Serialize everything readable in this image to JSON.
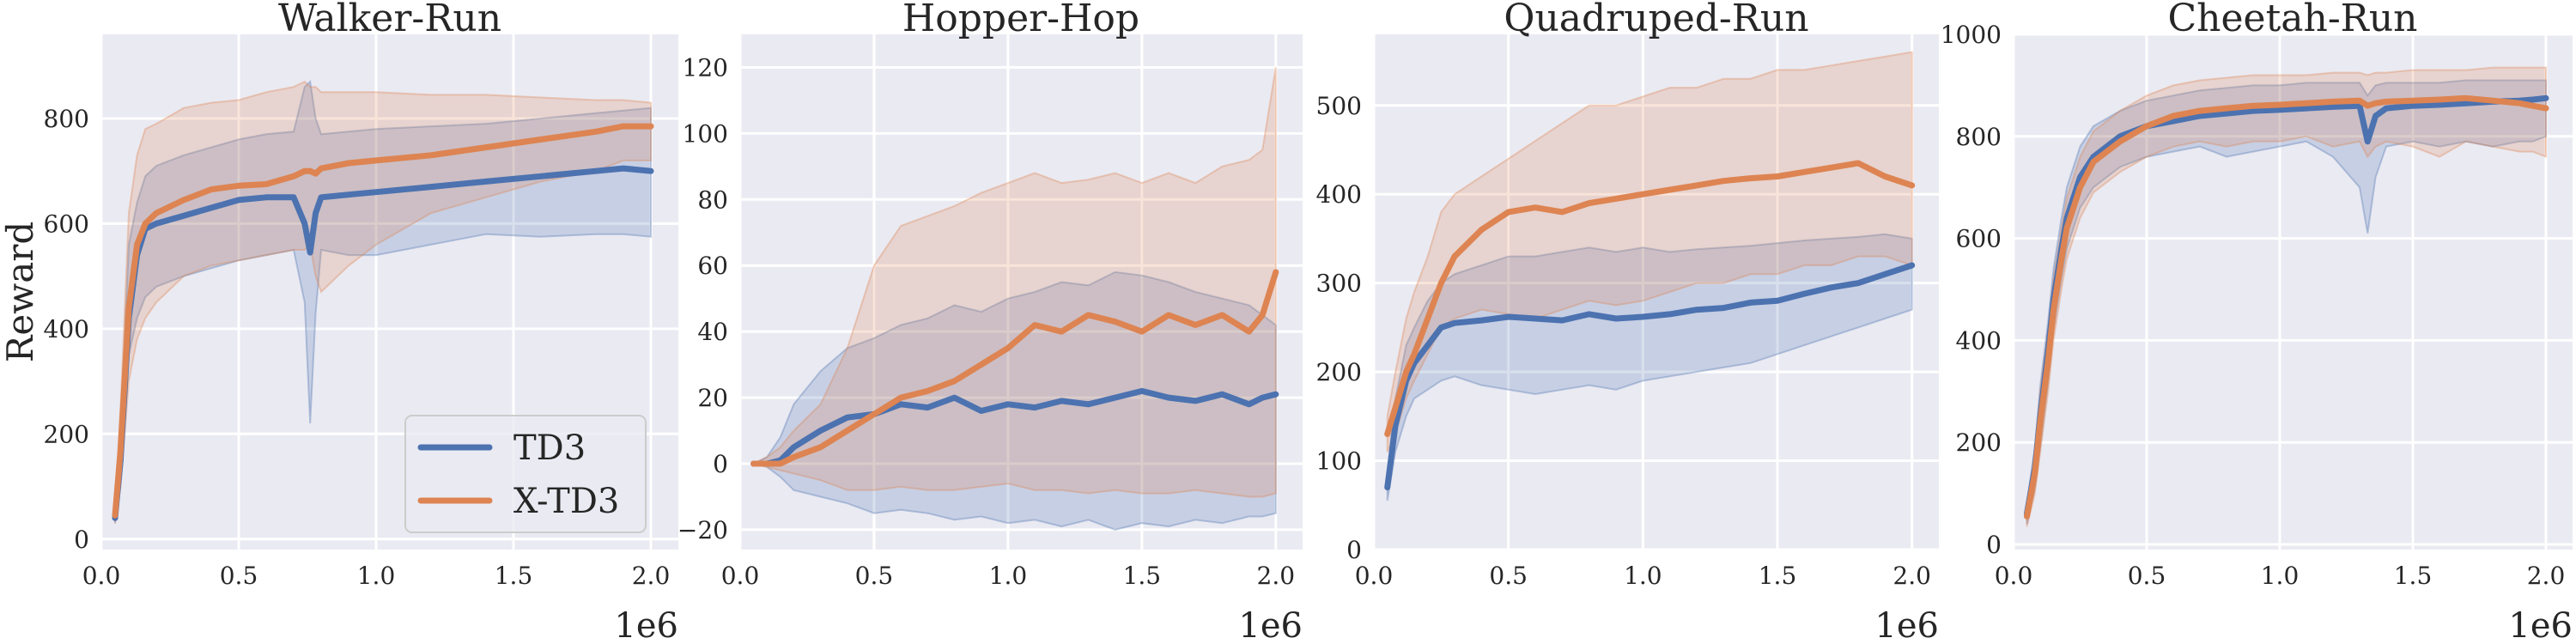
{
  "chart_data": [
    {
      "type": "line",
      "title": "Walker-Run",
      "ylabel": "Reward",
      "x_offset_label": "1e6",
      "xlim": [
        0.0,
        2.1
      ],
      "ylim": [
        -20,
        960
      ],
      "xticks": [
        "0.0",
        "0.5",
        "1.0",
        "1.5",
        "2.0"
      ],
      "yticks": [
        "0",
        "200",
        "400",
        "600",
        "800"
      ],
      "legend": {
        "placement": "lower-right",
        "entries": [
          "TD3",
          "X-TD3"
        ]
      },
      "grid": true,
      "x": [
        0.05,
        0.07,
        0.1,
        0.13,
        0.16,
        0.2,
        0.3,
        0.4,
        0.5,
        0.6,
        0.7,
        0.74,
        0.76,
        0.78,
        0.8,
        0.9,
        1.0,
        1.2,
        1.4,
        1.6,
        1.8,
        1.9,
        2.0
      ],
      "series": [
        {
          "name": "TD3",
          "color": "#4c72b0",
          "values": [
            40,
            150,
            420,
            540,
            590,
            600,
            615,
            630,
            645,
            650,
            650,
            600,
            545,
            620,
            650,
            655,
            660,
            670,
            680,
            690,
            700,
            705,
            700
          ],
          "lower": [
            30,
            110,
            350,
            420,
            460,
            480,
            500,
            515,
            530,
            540,
            550,
            450,
            220,
            430,
            550,
            540,
            540,
            560,
            580,
            575,
            580,
            580,
            575
          ],
          "upper": [
            55,
            210,
            560,
            640,
            690,
            710,
            730,
            745,
            760,
            770,
            775,
            860,
            870,
            800,
            770,
            775,
            780,
            785,
            790,
            800,
            810,
            815,
            820
          ]
        },
        {
          "name": "X-TD3",
          "color": "#dd8452",
          "values": [
            45,
            170,
            440,
            560,
            600,
            620,
            645,
            665,
            672,
            675,
            690,
            700,
            700,
            695,
            705,
            715,
            720,
            730,
            745,
            760,
            775,
            785,
            785
          ],
          "lower": [
            30,
            100,
            300,
            380,
            420,
            450,
            500,
            520,
            530,
            540,
            550,
            550,
            560,
            500,
            470,
            520,
            560,
            620,
            650,
            680,
            700,
            720,
            720
          ],
          "upper": [
            60,
            250,
            620,
            730,
            780,
            790,
            820,
            830,
            835,
            850,
            860,
            870,
            860,
            860,
            850,
            850,
            850,
            845,
            845,
            840,
            835,
            835,
            830
          ]
        }
      ]
    },
    {
      "type": "line",
      "title": "Hopper-Hop",
      "x_offset_label": "1e6",
      "xlim": [
        0.0,
        2.1
      ],
      "ylim": [
        -26,
        130
      ],
      "xticks": [
        "0.0",
        "0.5",
        "1.0",
        "1.5",
        "2.0"
      ],
      "yticks": [
        "−20",
        "0",
        "20",
        "40",
        "60",
        "80",
        "100",
        "120"
      ],
      "grid": true,
      "x": [
        0.05,
        0.1,
        0.15,
        0.2,
        0.3,
        0.4,
        0.5,
        0.6,
        0.7,
        0.8,
        0.9,
        1.0,
        1.1,
        1.2,
        1.3,
        1.4,
        1.5,
        1.6,
        1.7,
        1.8,
        1.9,
        1.95,
        2.0
      ],
      "series": [
        {
          "name": "TD3",
          "color": "#4c72b0",
          "values": [
            0,
            0,
            1,
            5,
            10,
            14,
            15,
            18,
            17,
            20,
            16,
            18,
            17,
            19,
            18,
            20,
            22,
            20,
            19,
            21,
            18,
            20,
            21
          ],
          "lower": [
            0,
            -1,
            -4,
            -8,
            -10,
            -12,
            -15,
            -14,
            -15,
            -17,
            -16,
            -18,
            -17,
            -19,
            -17,
            -20,
            -18,
            -19,
            -17,
            -18,
            -16,
            -16,
            -15
          ],
          "upper": [
            0,
            2,
            8,
            18,
            28,
            35,
            38,
            42,
            44,
            48,
            46,
            50,
            52,
            55,
            54,
            58,
            57,
            55,
            52,
            50,
            48,
            45,
            42
          ]
        },
        {
          "name": "X-TD3",
          "color": "#dd8452",
          "values": [
            0,
            0,
            0,
            2,
            5,
            10,
            15,
            20,
            22,
            25,
            30,
            35,
            42,
            40,
            45,
            43,
            40,
            45,
            42,
            45,
            40,
            45,
            58
          ],
          "lower": [
            0,
            -1,
            -2,
            -3,
            -5,
            -8,
            -8,
            -7,
            -8,
            -8,
            -7,
            -6,
            -8,
            -8,
            -9,
            -8,
            -9,
            -9,
            -8,
            -9,
            -10,
            -10,
            -9
          ],
          "upper": [
            0,
            2,
            5,
            10,
            18,
            35,
            60,
            72,
            75,
            78,
            82,
            85,
            88,
            85,
            86,
            88,
            85,
            88,
            85,
            90,
            92,
            95,
            120
          ]
        }
      ]
    },
    {
      "type": "line",
      "title": "Quadruped-Run",
      "x_offset_label": "1e6",
      "xlim": [
        0.0,
        2.1
      ],
      "ylim": [
        0,
        580
      ],
      "xticks": [
        "0.0",
        "0.5",
        "1.0",
        "1.5",
        "2.0"
      ],
      "yticks": [
        "0",
        "100",
        "200",
        "300",
        "400",
        "500"
      ],
      "grid": true,
      "x": [
        0.05,
        0.08,
        0.12,
        0.15,
        0.2,
        0.25,
        0.3,
        0.4,
        0.5,
        0.6,
        0.7,
        0.8,
        0.9,
        1.0,
        1.1,
        1.2,
        1.3,
        1.4,
        1.5,
        1.6,
        1.7,
        1.8,
        1.9,
        2.0
      ],
      "series": [
        {
          "name": "TD3",
          "color": "#4c72b0",
          "values": [
            70,
            140,
            190,
            210,
            230,
            250,
            255,
            258,
            262,
            260,
            258,
            265,
            260,
            262,
            265,
            270,
            272,
            278,
            280,
            288,
            295,
            300,
            310,
            320
          ],
          "lower": [
            55,
            110,
            150,
            170,
            180,
            190,
            195,
            185,
            180,
            175,
            180,
            185,
            180,
            190,
            195,
            200,
            205,
            210,
            220,
            230,
            240,
            250,
            260,
            270
          ],
          "upper": [
            85,
            170,
            230,
            250,
            280,
            300,
            310,
            320,
            330,
            330,
            335,
            340,
            335,
            340,
            335,
            338,
            340,
            342,
            345,
            348,
            350,
            352,
            355,
            350
          ]
        },
        {
          "name": "X-TD3",
          "color": "#dd8452",
          "values": [
            130,
            160,
            200,
            220,
            260,
            300,
            330,
            360,
            380,
            385,
            380,
            390,
            395,
            400,
            405,
            410,
            415,
            418,
            420,
            425,
            430,
            435,
            420,
            410
          ],
          "lower": [
            110,
            130,
            170,
            190,
            220,
            250,
            260,
            270,
            265,
            260,
            270,
            280,
            275,
            280,
            290,
            300,
            300,
            310,
            310,
            320,
            320,
            330,
            330,
            320
          ],
          "upper": [
            150,
            200,
            260,
            290,
            330,
            380,
            400,
            420,
            440,
            460,
            480,
            500,
            500,
            510,
            520,
            520,
            530,
            530,
            540,
            540,
            545,
            550,
            555,
            560
          ]
        }
      ]
    },
    {
      "type": "line",
      "title": "Cheetah-Run",
      "x_offset_label": "1e6",
      "xlim": [
        0.0,
        2.1
      ],
      "ylim": [
        -10,
        1000
      ],
      "xticks": [
        "0.0",
        "0.5",
        "1.0",
        "1.5",
        "2.0"
      ],
      "yticks": [
        "0",
        "200",
        "400",
        "600",
        "800",
        "1000"
      ],
      "grid": true,
      "x": [
        0.05,
        0.08,
        0.1,
        0.13,
        0.15,
        0.18,
        0.2,
        0.25,
        0.3,
        0.4,
        0.5,
        0.6,
        0.7,
        0.8,
        0.9,
        1.0,
        1.1,
        1.2,
        1.3,
        1.33,
        1.36,
        1.4,
        1.5,
        1.6,
        1.7,
        1.8,
        1.9,
        1.95,
        2.0
      ],
      "series": [
        {
          "name": "TD3",
          "color": "#4c72b0",
          "values": [
            60,
            150,
            250,
            380,
            480,
            580,
            640,
            720,
            760,
            800,
            820,
            830,
            840,
            845,
            850,
            852,
            855,
            858,
            860,
            790,
            840,
            855,
            860,
            862,
            865,
            868,
            870,
            872,
            875
          ],
          "lower": [
            40,
            110,
            190,
            320,
            420,
            520,
            580,
            660,
            700,
            740,
            760,
            770,
            780,
            760,
            770,
            780,
            790,
            760,
            700,
            610,
            720,
            780,
            790,
            780,
            790,
            780,
            790,
            790,
            800
          ],
          "upper": [
            80,
            190,
            310,
            440,
            540,
            640,
            700,
            780,
            820,
            850,
            870,
            880,
            890,
            895,
            900,
            900,
            905,
            905,
            905,
            880,
            900,
            905,
            905,
            905,
            910,
            910,
            910,
            910,
            910
          ]
        },
        {
          "name": "X-TD3",
          "color": "#dd8452",
          "values": [
            55,
            140,
            240,
            360,
            460,
            560,
            620,
            700,
            750,
            790,
            820,
            840,
            850,
            855,
            860,
            862,
            865,
            868,
            870,
            860,
            865,
            868,
            870,
            872,
            875,
            870,
            865,
            860,
            855
          ],
          "lower": [
            35,
            100,
            180,
            300,
            400,
            500,
            560,
            640,
            690,
            730,
            760,
            780,
            790,
            780,
            790,
            790,
            800,
            780,
            790,
            760,
            780,
            790,
            780,
            760,
            790,
            780,
            770,
            770,
            760
          ],
          "upper": [
            75,
            180,
            300,
            420,
            520,
            620,
            680,
            760,
            810,
            850,
            880,
            900,
            910,
            915,
            920,
            920,
            920,
            925,
            925,
            920,
            925,
            925,
            930,
            930,
            930,
            935,
            935,
            935,
            935
          ]
        }
      ]
    }
  ]
}
